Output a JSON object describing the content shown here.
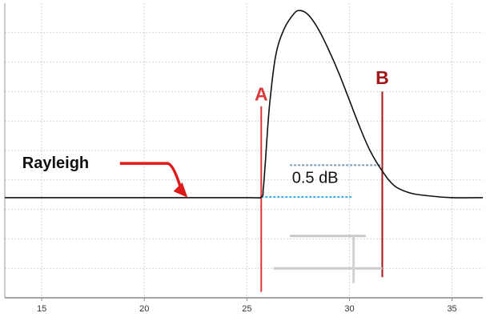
{
  "chart_data": {
    "type": "line",
    "title": "",
    "xlabel": "",
    "ylabel": "",
    "xlim": [
      13.2,
      36.5
    ],
    "ylim": [
      0,
      10
    ],
    "grid": true,
    "x_ticks": [
      15,
      20,
      25,
      30,
      35
    ],
    "x_tick_labels": [
      "15",
      "20",
      "25",
      "30",
      "35"
    ],
    "series": [
      {
        "color": "#111111",
        "x": [
          13.2,
          20,
          25,
          25.7,
          25.8,
          25.9,
          26.1,
          26.4,
          26.8,
          27.3,
          27.6,
          28.0,
          28.5,
          29.0,
          29.5,
          30.0,
          30.5,
          31.0,
          31.6,
          32.2,
          33.0,
          34.0,
          35.0,
          36.5
        ],
        "y": [
          3.4,
          3.4,
          3.4,
          3.42,
          3.7,
          4.6,
          6.5,
          8.2,
          9.1,
          9.65,
          9.75,
          9.6,
          9.1,
          8.4,
          7.6,
          6.7,
          5.8,
          5.0,
          4.3,
          3.8,
          3.55,
          3.45,
          3.4,
          3.4
        ]
      }
    ],
    "markers": [
      {
        "label": "A",
        "x": 25.7,
        "color": "#d83a3a"
      },
      {
        "label": "B",
        "x": 31.6,
        "color": "#a01818"
      }
    ],
    "annotations": [
      {
        "text": "Rayleigh",
        "arrow_to_x": 22,
        "arrow_to_y": 3.4,
        "arrow_color": "#e01818"
      }
    ],
    "difference": {
      "label": "0.5 dB",
      "lower_level": 3.42,
      "upper_level": 4.5,
      "lower_color": "#3da8e8",
      "upper_color": "#7a9cb8"
    }
  }
}
